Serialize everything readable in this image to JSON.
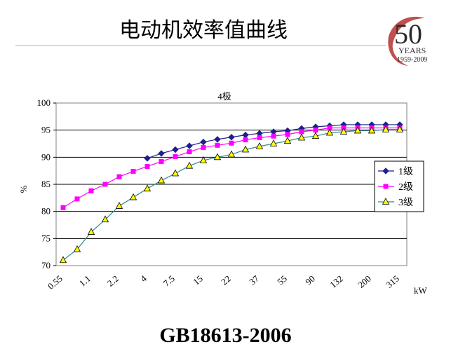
{
  "slide": {
    "title": "电动机效率值曲线",
    "footer": "GB18613-2006"
  },
  "logo": {
    "number": "50",
    "years": "YEARS",
    "range": "1959-2009",
    "accent_color": "#c0504d"
  },
  "chart_data": {
    "type": "line",
    "title": "4极",
    "ylabel": "%",
    "xunit": "kW",
    "ylim": [
      70,
      100
    ],
    "yticks": [
      70,
      75,
      80,
      85,
      90,
      95,
      100
    ],
    "grid": true,
    "legend_position": "right",
    "x_labels": [
      "0.55",
      "1.1",
      "2.2",
      "4",
      "7.5",
      "15",
      "22",
      "37",
      "55",
      "90",
      "132",
      "200",
      "315"
    ],
    "x_points": [
      "0.55",
      "0.75",
      "1.1",
      "1.5",
      "2.2",
      "3",
      "4",
      "5.5",
      "7.5",
      "11",
      "15",
      "18.5",
      "22",
      "30",
      "37",
      "45",
      "55",
      "75",
      "90",
      "110",
      "132",
      "160",
      "200",
      "250",
      "315"
    ],
    "series": [
      {
        "name": "1级",
        "color": "#1f1f8c",
        "marker": "diamond",
        "start_index": 6,
        "values": [
          89.8,
          90.7,
          91.4,
          92.1,
          92.8,
          93.3,
          93.7,
          94.1,
          94.4,
          94.7,
          94.9,
          95.3,
          95.6,
          95.8,
          96.0,
          96.0,
          96.0,
          96.0,
          96.0
        ]
      },
      {
        "name": "2级",
        "color": "#ff00ff",
        "marker": "square",
        "start_index": 0,
        "values": [
          80.7,
          82.3,
          83.8,
          85.0,
          86.4,
          87.4,
          88.3,
          89.2,
          90.1,
          91.0,
          91.8,
          92.2,
          92.6,
          93.2,
          93.6,
          93.9,
          94.2,
          94.7,
          95.0,
          95.4,
          95.4,
          95.4,
          95.4,
          95.4,
          95.4
        ]
      },
      {
        "name": "3级",
        "color": "#2e8b8b",
        "marker": "triangle",
        "marker_fill": "#ffff00",
        "start_index": 0,
        "values": [
          71.0,
          73.0,
          76.2,
          78.5,
          81.0,
          82.6,
          84.2,
          85.7,
          87.0,
          88.4,
          89.4,
          90.0,
          90.5,
          91.4,
          92.0,
          92.5,
          93.0,
          93.6,
          93.9,
          94.5,
          94.7,
          94.9,
          94.9,
          95.1,
          95.1
        ]
      }
    ]
  }
}
